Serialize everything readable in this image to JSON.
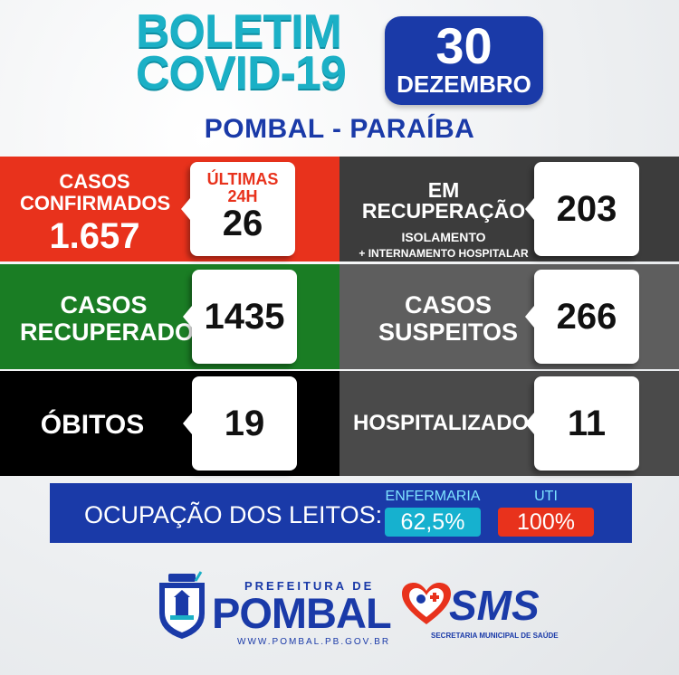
{
  "header": {
    "title_line1": "BOLETIM",
    "title_line2": "COVID-19",
    "date_day": "30",
    "date_month": "DEZEMBRO",
    "location": "POMBAL - PARAÍBA"
  },
  "panels": {
    "confirmed": {
      "label_line1": "CASOS",
      "label_line2": "CONFIRMADOS",
      "total": "1.657",
      "recent_label_line1": "ÚLTIMAS",
      "recent_label_line2": "24H",
      "recent_value": "26"
    },
    "recovering": {
      "label": "EM RECUPERAÇÃO",
      "sub_line1": "ISOLAMENTO",
      "sub_line2": "+ INTERNAMENTO HOSPITALAR",
      "value": "203"
    },
    "recovered": {
      "label_line1": "CASOS",
      "label_line2": "RECUPERADOS",
      "value": "1435"
    },
    "suspected": {
      "label_line1": "CASOS",
      "label_line2": "SUSPEITOS",
      "value": "266"
    },
    "deaths": {
      "label": "ÓBITOS",
      "value": "19"
    },
    "hospitalized": {
      "label": "HOSPITALIZADOS",
      "value": "11"
    }
  },
  "beds": {
    "label": "OCUPAÇÃO DOS LEITOS:",
    "ward_title": "ENFERMARIA",
    "ward_value": "62,5%",
    "icu_title": "UTI",
    "icu_value": "100%"
  },
  "footer": {
    "prefeitura_top": "PREFEITURA DE",
    "prefeitura_name": "POMBAL",
    "prefeitura_url": "WWW.POMBAL.PB.GOV.BR",
    "sms_name": "SMS",
    "sms_sub": "SECRETARIA MUNICIPAL DE SAÚDE"
  },
  "colors": {
    "red": "#e8321c",
    "green": "#1a7d24",
    "black": "#000000",
    "dark_gray": "#3c3c3c",
    "mid_gray": "#5e5e5e",
    "teal": "#1bb0c6",
    "blue": "#1a3aa8",
    "ward_badge": "#16b1cf",
    "icu_badge": "#e8321c"
  }
}
